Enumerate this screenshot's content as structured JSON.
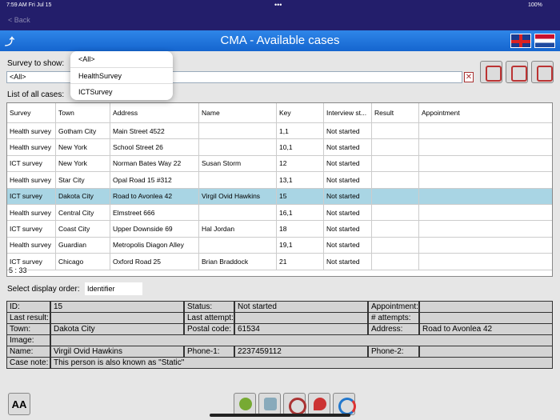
{
  "status_bar": {
    "time": "7:59 AM  Fri Jul 15",
    "dots": "•••",
    "battery": "100%"
  },
  "nav": {
    "back": "< Back"
  },
  "header": {
    "title": "CMA - Available cases"
  },
  "filter": {
    "label": "Survey to show:",
    "value": "<All>",
    "options": [
      "<All>",
      "HealthSurvey",
      "ICTSurvey"
    ]
  },
  "list": {
    "label": "List of all cases:",
    "columns": [
      "Survey",
      "Town",
      "Address",
      "Name",
      "Key",
      "Interview st...",
      "Result",
      "Appointment"
    ],
    "rows": [
      [
        "Health survey",
        "Gotham City",
        "Main Street 4522",
        null,
        "1,1",
        "Not started",
        null,
        null
      ],
      [
        "Health survey",
        "New York",
        "School Street 26",
        null,
        "10,1",
        "Not started",
        null,
        null
      ],
      [
        "ICT survey",
        "New York",
        "Norman Bates Way 22",
        "Susan Storm",
        "12",
        "Not started",
        null,
        null
      ],
      [
        "Health survey",
        "Star City",
        "Opal Road 15 #312",
        null,
        "13,1",
        "Not started",
        null,
        null
      ],
      [
        "ICT survey",
        "Dakota City",
        "Road to Avonlea 42",
        "Virgil Ovid Hawkins",
        "15",
        "Not started",
        null,
        null
      ],
      [
        "Health survey",
        "Central City",
        "Elmstreet 666",
        null,
        "16,1",
        "Not started",
        null,
        null
      ],
      [
        "ICT survey",
        "Coast City",
        "Upper Downside 69",
        "Hal Jordan",
        "18",
        "Not started",
        null,
        null
      ],
      [
        "Health survey",
        "Guardian",
        "Metropolis Diagon Alley",
        null,
        "19,1",
        "Not started",
        null,
        null
      ],
      [
        "ICT survey",
        "Chicago",
        "Oxford Road 25",
        "Brian Braddock",
        "21",
        "Not started",
        null,
        null
      ]
    ],
    "count": "5 : 33"
  },
  "order": {
    "label": "Select display order:",
    "value": "Identifier"
  },
  "detail": {
    "rows": [
      [
        {
          "label": "ID:",
          "value": "15"
        },
        {
          "label": "Status:",
          "value": "Not started"
        },
        {
          "label": "Appointment:"
        }
      ],
      [
        {
          "label": "Last result:"
        },
        {
          "label": "Last attempt:"
        },
        {
          "label": "# attempts:"
        }
      ],
      [
        {
          "label": "Town:",
          "value": "Dakota City"
        },
        {
          "label": "Postal code:",
          "value": "61534"
        },
        {
          "label": "Address:",
          "value": "Road to Avonlea 42"
        }
      ],
      [
        {
          "label": "Image:"
        }
      ],
      [
        {
          "label": "Name:",
          "value": "Virgil Ovid Hawkins"
        },
        {
          "label": "Phone-1:",
          "value": "2237459112"
        },
        {
          "label": "Phone-2:"
        }
      ],
      [
        {
          "label": "Case note:",
          "value": "This person is also known as \"Static\""
        }
      ]
    ]
  },
  "toolbar": {
    "font_icon": "AA"
  }
}
